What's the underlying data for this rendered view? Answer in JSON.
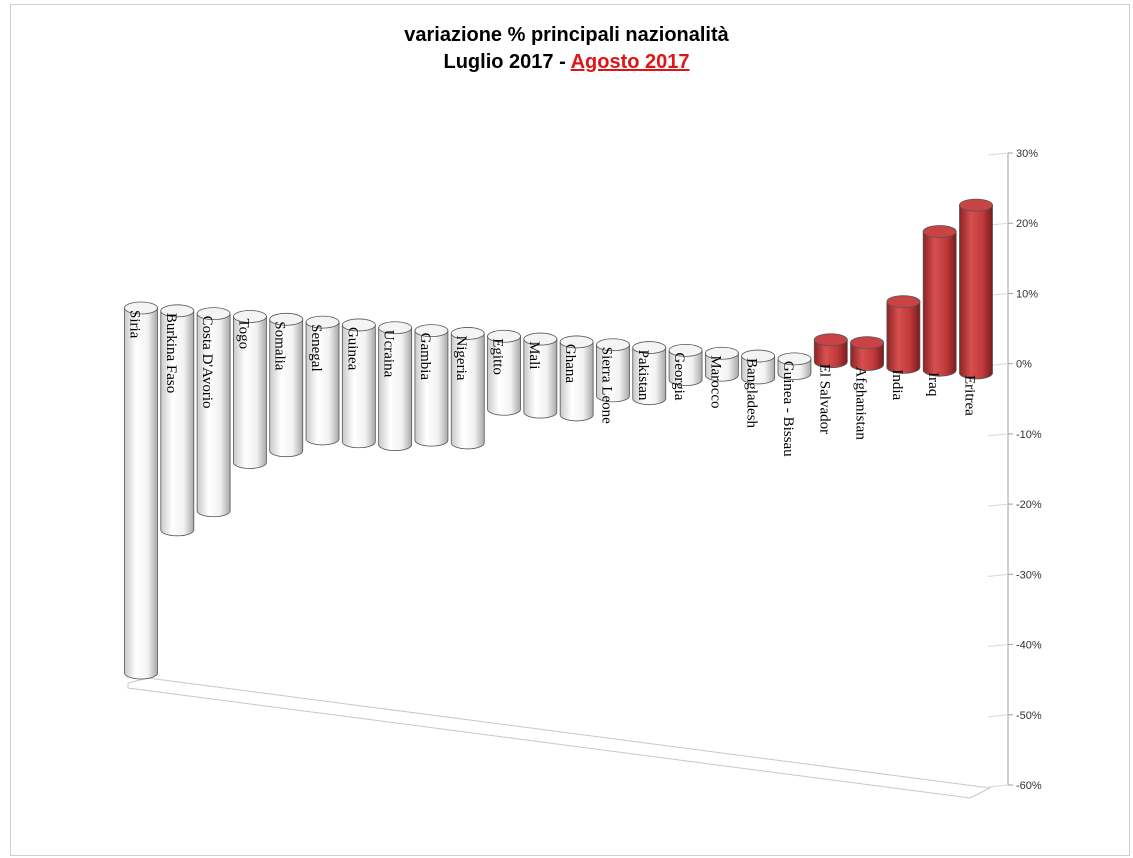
{
  "chart_data": {
    "type": "bar",
    "subtype": "3d-cylinder",
    "title": "variazione % principali nazionalità",
    "subtitle_prefix": "Luglio 2017 - ",
    "subtitle_highlight": "Agosto 2017",
    "xlabel": "",
    "ylabel": "",
    "ylim": [
      -60,
      30
    ],
    "yticks": [
      "30%",
      "20%",
      "10%",
      "0%",
      "-10%",
      "-20%",
      "-30%",
      "-40%",
      "-50%",
      "-60%"
    ],
    "grid": false,
    "legend": "none",
    "categories": [
      "Siria",
      "Burkina Faso",
      "Costa D'Avorio",
      "Togo",
      "Somalia",
      "Senegal",
      "Guinea",
      "Ucraina",
      "Gambia",
      "Nigeria",
      "Egitto",
      "Mali",
      "Ghana",
      "Sierra Leone",
      "Pakistan",
      "Georgia",
      "Marocco",
      "Bangladesh",
      "Guinea - Bissau",
      "El Salvador",
      "Afghanistan",
      "India",
      "Iraq",
      "Eritrea"
    ],
    "series": [
      {
        "values": [
          -50,
          -30,
          -27,
          -20,
          -18,
          -16,
          -16,
          -16,
          -15,
          -15,
          -10,
          -10,
          -10,
          -7,
          -7,
          -4,
          -3,
          -3,
          -2,
          3,
          3,
          9,
          19,
          23
        ]
      }
    ],
    "colors": {
      "negative": "#ffffff",
      "positive": "#c0393b",
      "outline": "#555555"
    }
  }
}
